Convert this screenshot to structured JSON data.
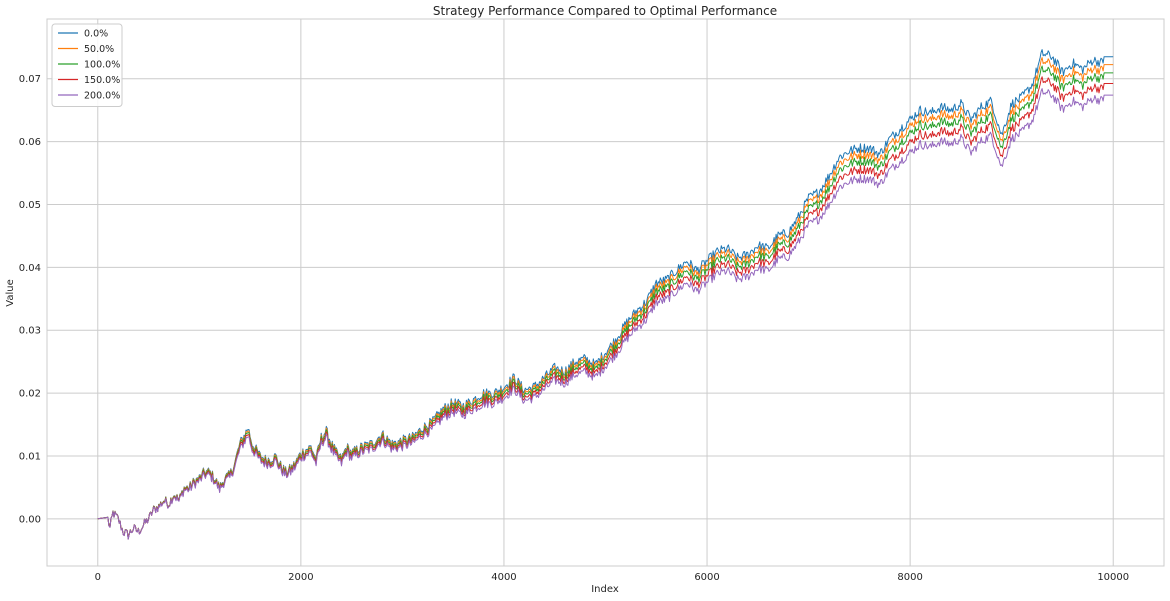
{
  "chart_data": {
    "type": "line",
    "title": "Strategy Performance Compared to Optimal Performance",
    "xlabel": "Index",
    "ylabel": "Value",
    "xlim": [
      -500,
      10500
    ],
    "ylim": [
      -0.0075,
      0.0795
    ],
    "xticks": [
      0,
      2000,
      4000,
      6000,
      8000,
      10000
    ],
    "xtick_labels": [
      "0",
      "2000",
      "4000",
      "6000",
      "8000",
      "10000"
    ],
    "yticks": [
      0.0,
      0.01,
      0.02,
      0.03,
      0.04,
      0.05,
      0.06,
      0.07
    ],
    "ytick_labels": [
      "0.00",
      "0.01",
      "0.02",
      "0.03",
      "0.04",
      "0.05",
      "0.06",
      "0.07"
    ],
    "grid": true,
    "legend_position": "top-left",
    "x": [
      0,
      100,
      120,
      150,
      200,
      250,
      300,
      350,
      400,
      450,
      500,
      550,
      600,
      650,
      700,
      750,
      800,
      850,
      900,
      950,
      1000,
      1050,
      1100,
      1150,
      1200,
      1250,
      1300,
      1350,
      1400,
      1450,
      1480,
      1520,
      1560,
      1600,
      1650,
      1700,
      1750,
      1800,
      1850,
      1900,
      1950,
      2000,
      2050,
      2100,
      2150,
      2200,
      2250,
      2300,
      2350,
      2400,
      2450,
      2500,
      2600,
      2700,
      2800,
      2900,
      3000,
      3100,
      3200,
      3300,
      3400,
      3500,
      3600,
      3700,
      3800,
      3900,
      4000,
      4100,
      4200,
      4300,
      4400,
      4500,
      4600,
      4700,
      4800,
      4900,
      5000,
      5100,
      5200,
      5300,
      5400,
      5500,
      5600,
      5700,
      5800,
      5900,
      6000,
      6100,
      6200,
      6300,
      6400,
      6500,
      6600,
      6700,
      6800,
      6900,
      7000,
      7100,
      7200,
      7300,
      7400,
      7500,
      7600,
      7700,
      7800,
      7900,
      8000,
      8100,
      8200,
      8300,
      8400,
      8500,
      8600,
      8700,
      8800,
      8900,
      9000,
      9100,
      9200,
      9250,
      9300,
      9400,
      9500,
      9600,
      9700,
      9800,
      9900,
      10000
    ],
    "base": [
      0.0,
      0.0,
      -0.0015,
      0.001,
      0.0,
      -0.002,
      -0.0025,
      -0.0015,
      -0.002,
      -0.001,
      0.0,
      0.0015,
      0.002,
      0.003,
      0.0025,
      0.004,
      0.003,
      0.005,
      0.005,
      0.006,
      0.0065,
      0.0075,
      0.0075,
      0.0065,
      0.005,
      0.0065,
      0.007,
      0.009,
      0.012,
      0.0135,
      0.0145,
      0.012,
      0.011,
      0.01,
      0.0095,
      0.0095,
      0.01,
      0.0085,
      0.0075,
      0.008,
      0.009,
      0.0105,
      0.011,
      0.0115,
      0.0095,
      0.013,
      0.014,
      0.012,
      0.0105,
      0.0095,
      0.0115,
      0.0105,
      0.0115,
      0.012,
      0.0135,
      0.012,
      0.0125,
      0.013,
      0.0145,
      0.0155,
      0.0175,
      0.0185,
      0.018,
      0.019,
      0.02,
      0.02,
      0.021,
      0.0225,
      0.0205,
      0.021,
      0.0225,
      0.024,
      0.0235,
      0.025,
      0.0255,
      0.0245,
      0.0265,
      0.0285,
      0.031,
      0.033,
      0.0345,
      0.0375,
      0.038,
      0.0395,
      0.041,
      0.0395,
      0.041,
      0.0425,
      0.043,
      0.0415,
      0.042,
      0.0435,
      0.043,
      0.045,
      0.0455,
      0.048,
      0.051,
      0.052,
      0.0545,
      0.0575,
      0.0585,
      0.059,
      0.059,
      0.058,
      0.0605,
      0.062,
      0.0635,
      0.065,
      0.0645,
      0.0655,
      0.065,
      0.066,
      0.0635,
      0.0655,
      0.0665,
      0.061,
      0.066,
      0.067,
      0.069,
      0.0715,
      0.074,
      0.0735,
      0.071,
      0.0725,
      0.0715,
      0.073,
      0.0725,
      0.072,
      0.0735
    ],
    "series": [
      {
        "name": "0.0%",
        "color": "#1f77b4",
        "scale": 1.0
      },
      {
        "name": "50.0%",
        "color": "#ff7f0e",
        "scale": 0.983
      },
      {
        "name": "100.0%",
        "color": "#2ca02c",
        "scale": 0.965
      },
      {
        "name": "150.0%",
        "color": "#d62728",
        "scale": 0.942
      },
      {
        "name": "200.0%",
        "color": "#9467bd",
        "scale": 0.917
      }
    ]
  }
}
